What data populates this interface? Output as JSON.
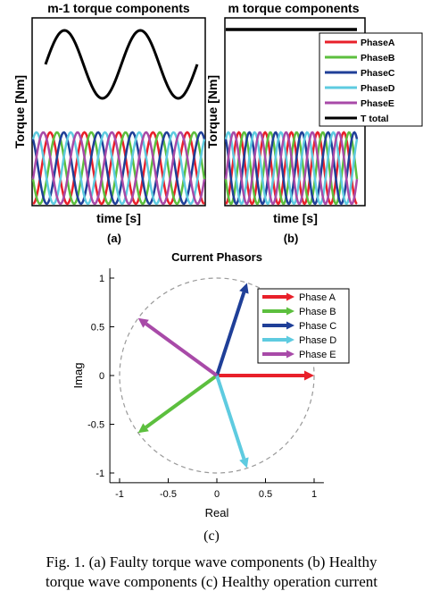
{
  "colors": {
    "PhaseA": "#e8202a",
    "PhaseB": "#5cbf3e",
    "PhaseC": "#1f3f98",
    "PhaseD": "#5ecbe0",
    "PhaseE": "#a84aa8",
    "total": "#000000",
    "circle": "#9a9a9a"
  },
  "chart_data": [
    {
      "id": "a",
      "type": "line",
      "title": "m-1 torque components",
      "xlabel": "time [s]",
      "ylabel": "Torque [Nm]",
      "panel_label": "(a)",
      "total_cycles": 2,
      "phase_cycles": 5,
      "phases": [
        "PhaseA",
        "PhaseB",
        "PhaseC",
        "PhaseD",
        "PhaseE"
      ],
      "phase_offsets_deg": [
        0,
        72,
        144,
        216,
        288
      ]
    },
    {
      "id": "b",
      "type": "line",
      "title": "m torque components",
      "xlabel": "time [s]",
      "ylabel": "Torque [Nm]",
      "panel_label": "(b)",
      "total_constant": true,
      "phase_cycles": 5,
      "legend": [
        "PhaseA",
        "PhaseB",
        "PhaseC",
        "PhaseD",
        "PhaseE",
        "T total"
      ],
      "legend_position": "top-right"
    },
    {
      "id": "c",
      "type": "scatter",
      "title": "Current Phasors",
      "xlabel": "Real",
      "ylabel": "Imag",
      "panel_label": "(c)",
      "xlim": [
        -1.1,
        1.1
      ],
      "ylim": [
        -1.1,
        1.1
      ],
      "xticks": [
        "-1",
        "-0.5",
        "0",
        "0.5",
        "1"
      ],
      "yticks": [
        "1",
        "0.5",
        "0",
        "-0.5",
        "-1"
      ],
      "unit_circle": true,
      "legend_position": "top-right",
      "phasors": [
        {
          "name": "Phase A",
          "color_key": "PhaseA",
          "real": 1.0,
          "imag": 0.0
        },
        {
          "name": "Phase B",
          "color_key": "PhaseB",
          "real": -0.81,
          "imag": -0.59
        },
        {
          "name": "Phase C",
          "color_key": "PhaseC",
          "real": 0.31,
          "imag": 0.95
        },
        {
          "name": "Phase D",
          "color_key": "PhaseD",
          "real": 0.31,
          "imag": -0.95
        },
        {
          "name": "Phase E",
          "color_key": "PhaseE",
          "real": -0.81,
          "imag": 0.59
        }
      ]
    }
  ],
  "caption": {
    "line1": "Fig. 1.   (a) Faulty torque wave components (b) Healthy",
    "line2": "torque wave components  (c) Healthy operation current"
  }
}
